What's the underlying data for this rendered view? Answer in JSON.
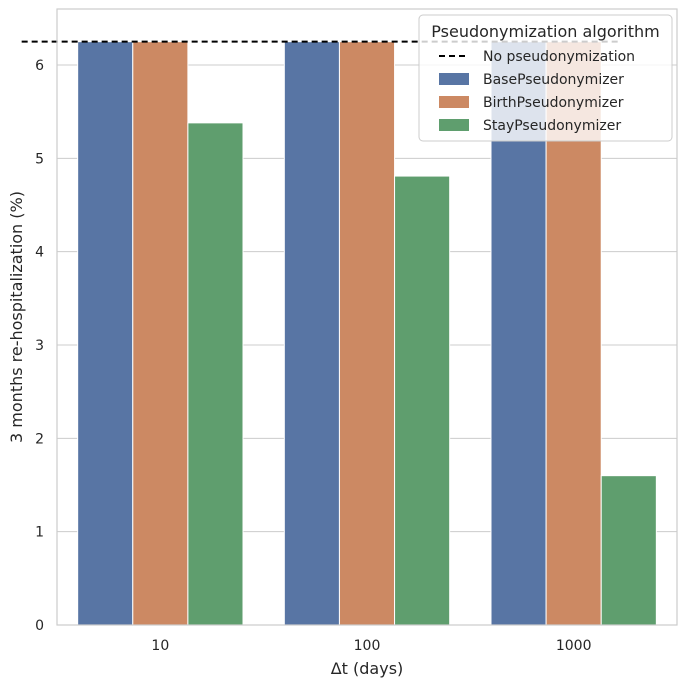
{
  "chart_data": {
    "type": "bar",
    "title": "",
    "xlabel": "Δt (days)",
    "ylabel": "3 months re-hospitalization (%)",
    "categories": [
      "10",
      "100",
      "1000"
    ],
    "ylim": [
      0,
      6.6
    ],
    "yticks": [
      0,
      1,
      2,
      3,
      4,
      5,
      6
    ],
    "grid": "horizontal",
    "legend": {
      "title": "Pseudonymization algorithm",
      "placement": "top-right"
    },
    "reference_line": {
      "name": "No pseudonymization",
      "value": 6.25,
      "style": "dashed",
      "color": "#000000"
    },
    "series": [
      {
        "name": "BasePseudonymizer",
        "color": "#5875a4",
        "values": [
          6.25,
          6.25,
          6.25
        ]
      },
      {
        "name": "BirthPseudonymizer",
        "color": "#cc8963",
        "values": [
          6.25,
          6.25,
          6.25
        ]
      },
      {
        "name": "StayPseudonymizer",
        "color": "#5f9e6e",
        "values": [
          5.38,
          4.81,
          1.6
        ]
      }
    ]
  }
}
